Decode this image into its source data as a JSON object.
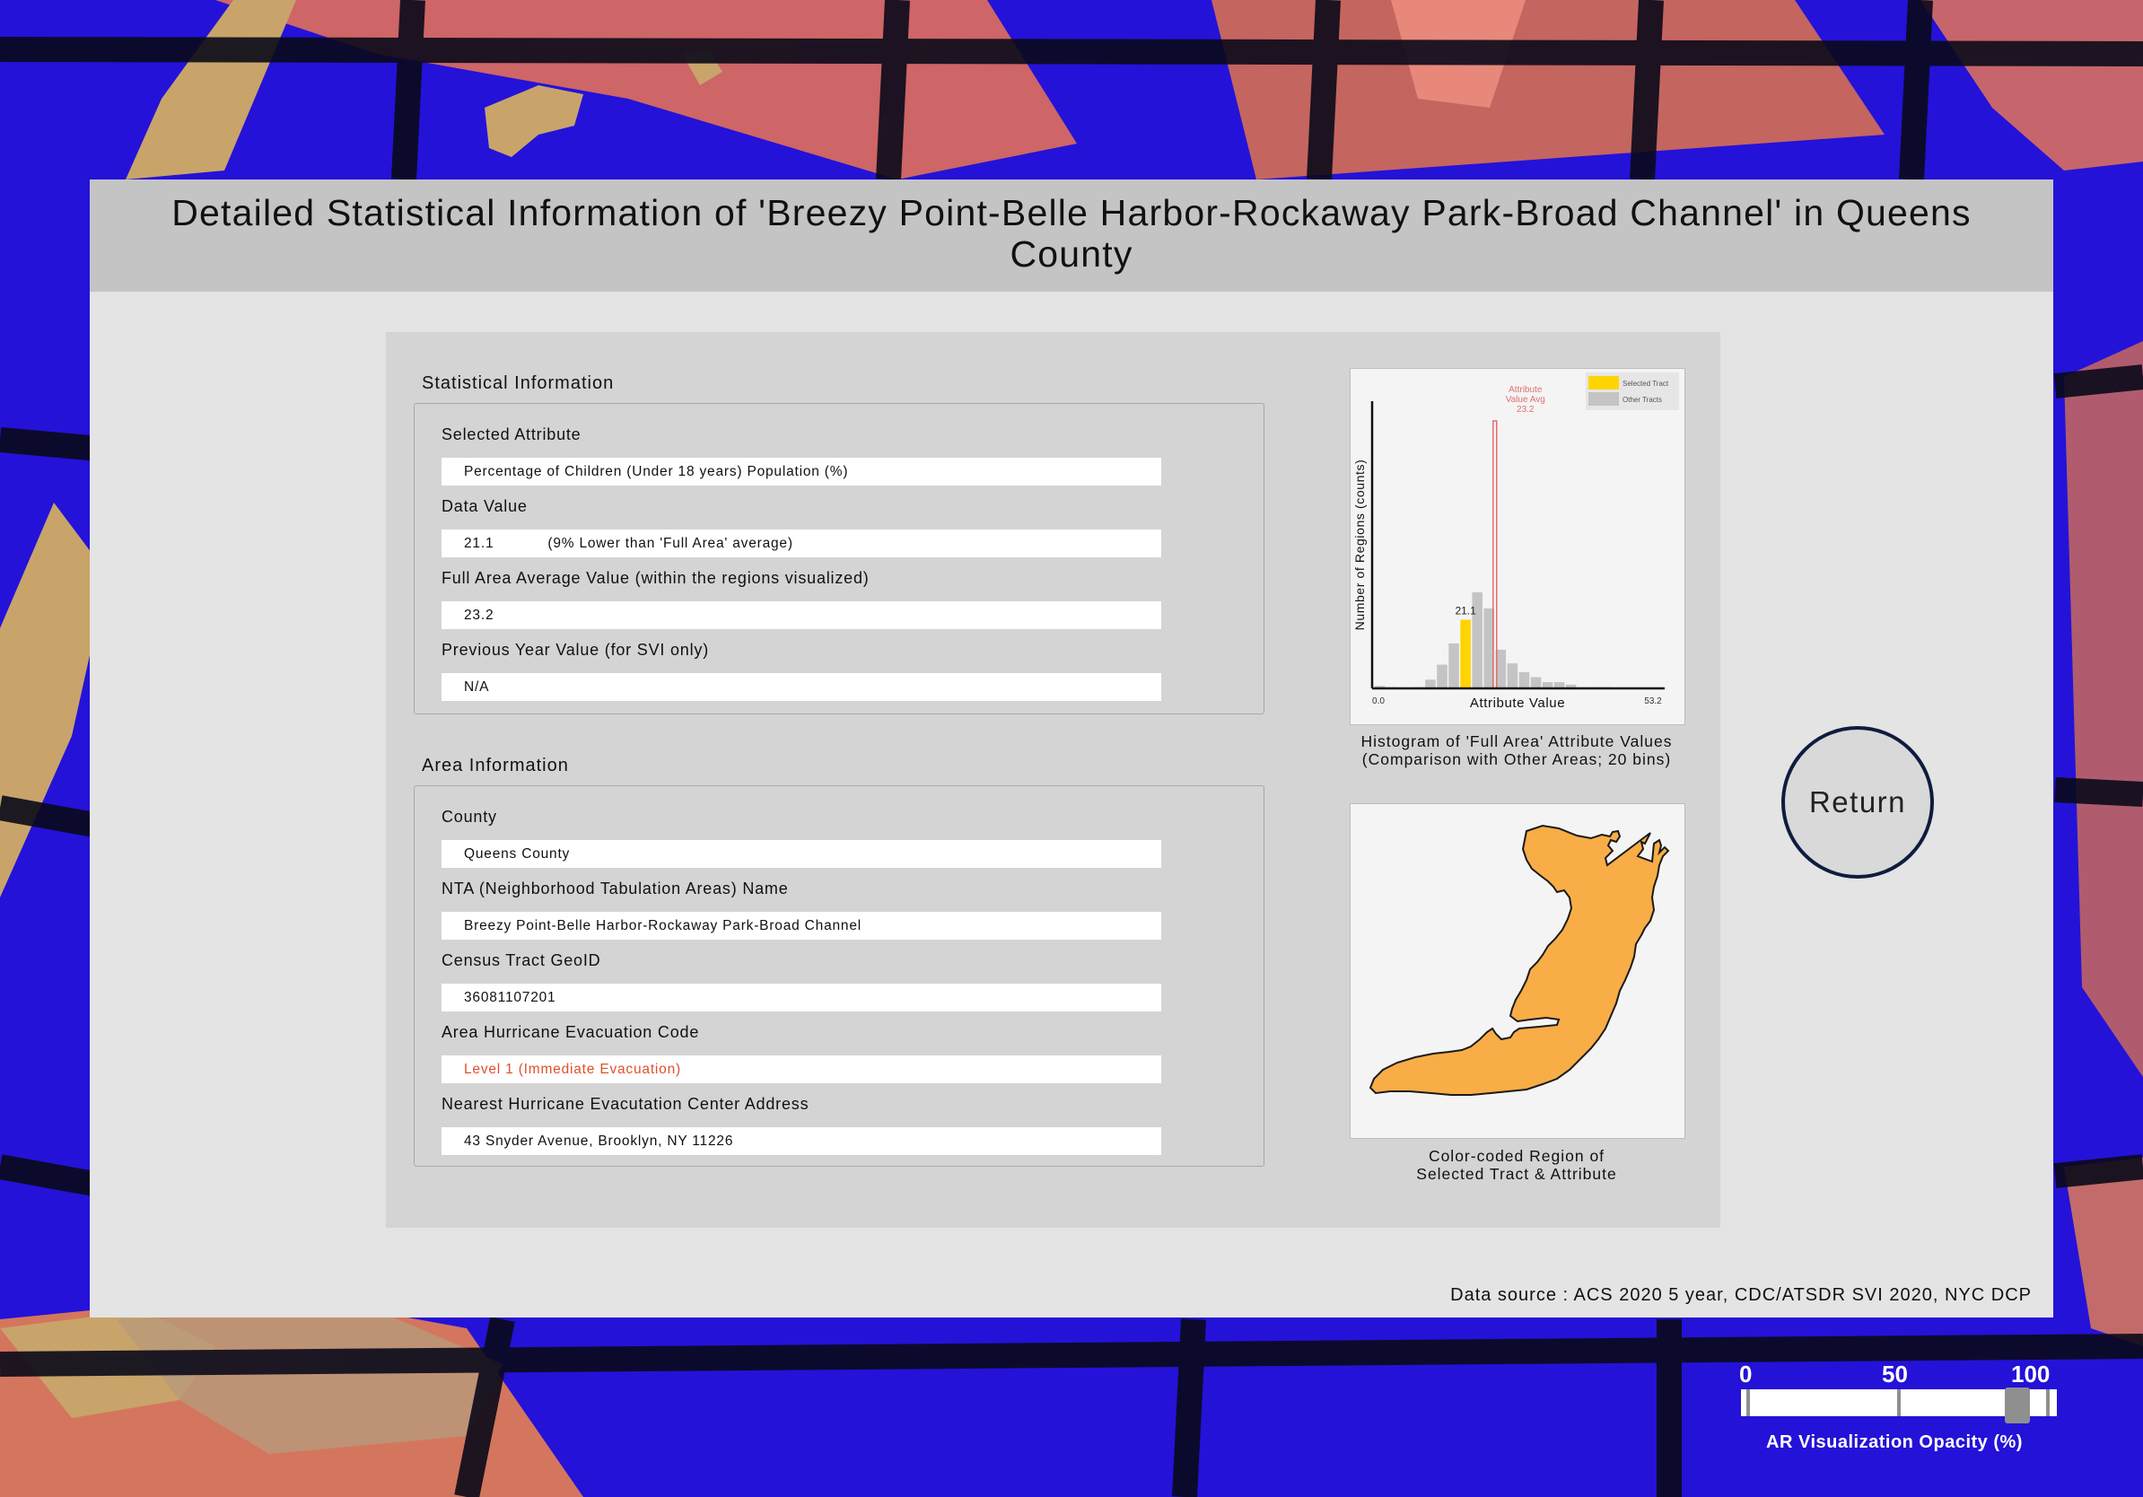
{
  "title": "Detailed Statistical Information of 'Breezy Point-Belle Harbor-Rockaway Park-Broad Channel' in Queens County",
  "statistical_section": {
    "heading": "Statistical Information",
    "fields": [
      {
        "label": "Selected Attribute",
        "value": "Percentage of Children (Under 18 years) Population (%)"
      },
      {
        "label": "Data Value",
        "value": "21.1",
        "note": "(9% Lower than 'Full Area' average)"
      },
      {
        "label": "Full Area Average Value (within the regions visualized)",
        "value": "23.2"
      },
      {
        "label": "Previous Year Value (for SVI only)",
        "value": "N/A"
      }
    ]
  },
  "area_section": {
    "heading": "Area Information",
    "fields": [
      {
        "label": "County",
        "value": "Queens County"
      },
      {
        "label": "NTA (Neighborhood Tabulation Areas) Name",
        "value": "Breezy Point-Belle Harbor-Rockaway Park-Broad Channel"
      },
      {
        "label": "Census Tract GeoID",
        "value": "36081107201"
      },
      {
        "label": "Area Hurricane Evacuation Code",
        "value": "Level 1 (Immediate Evacuation)",
        "color": "#e0502a"
      },
      {
        "label": "Nearest Hurricane Evacutation Center Address",
        "value": "43 Snyder Avenue, Brooklyn, NY 11226"
      }
    ]
  },
  "histogram": {
    "caption_line1": "Histogram of 'Full Area' Attribute Values",
    "caption_line2": "(Comparison with Other Areas; 20 bins)"
  },
  "chart_data": {
    "type": "bar",
    "xlabel": "Attribute Value",
    "ylabel": "Number of Regions (counts)",
    "xmin_label": "0.0",
    "xmax_label": "53.2",
    "xlim": [
      0,
      53.2
    ],
    "bin_count": 20,
    "values": [
      2,
      1,
      0,
      1,
      7,
      19,
      36,
      55,
      77,
      64,
      31,
      20,
      13,
      9,
      5,
      5,
      3,
      1,
      1,
      1
    ],
    "highlight_bin": 7,
    "highlight_label": "21.1",
    "avg_line": {
      "value": 23.2,
      "label_lines": [
        "Attribute",
        "Value Avg",
        "23.2"
      ]
    },
    "legend": [
      {
        "name": "Selected Tract",
        "color": "#ffd400"
      },
      {
        "name": "Other Tracts",
        "color": "#c4c4c4"
      }
    ],
    "colors": {
      "bar": "#c4c4c4",
      "highlight": "#ffd400",
      "avg": "#e07070"
    }
  },
  "region_map": {
    "caption_line1": "Color-coded Region of",
    "caption_line2": "Selected Tract & Attribute",
    "fill_color": "#f9ad46"
  },
  "data_source": "Data source : ACS 2020 5 year, CDC/ATSDR SVI 2020, NYC DCP",
  "return_label": "Return",
  "opacity_slider": {
    "labels": [
      "0",
      "50",
      "100"
    ],
    "value": 90,
    "caption": "AR Visualization Opacity (%)"
  },
  "colors": {
    "background_blue": "#1a10c8",
    "panel_header": "#c4c4c4",
    "return_border": "#0f1c3f"
  }
}
